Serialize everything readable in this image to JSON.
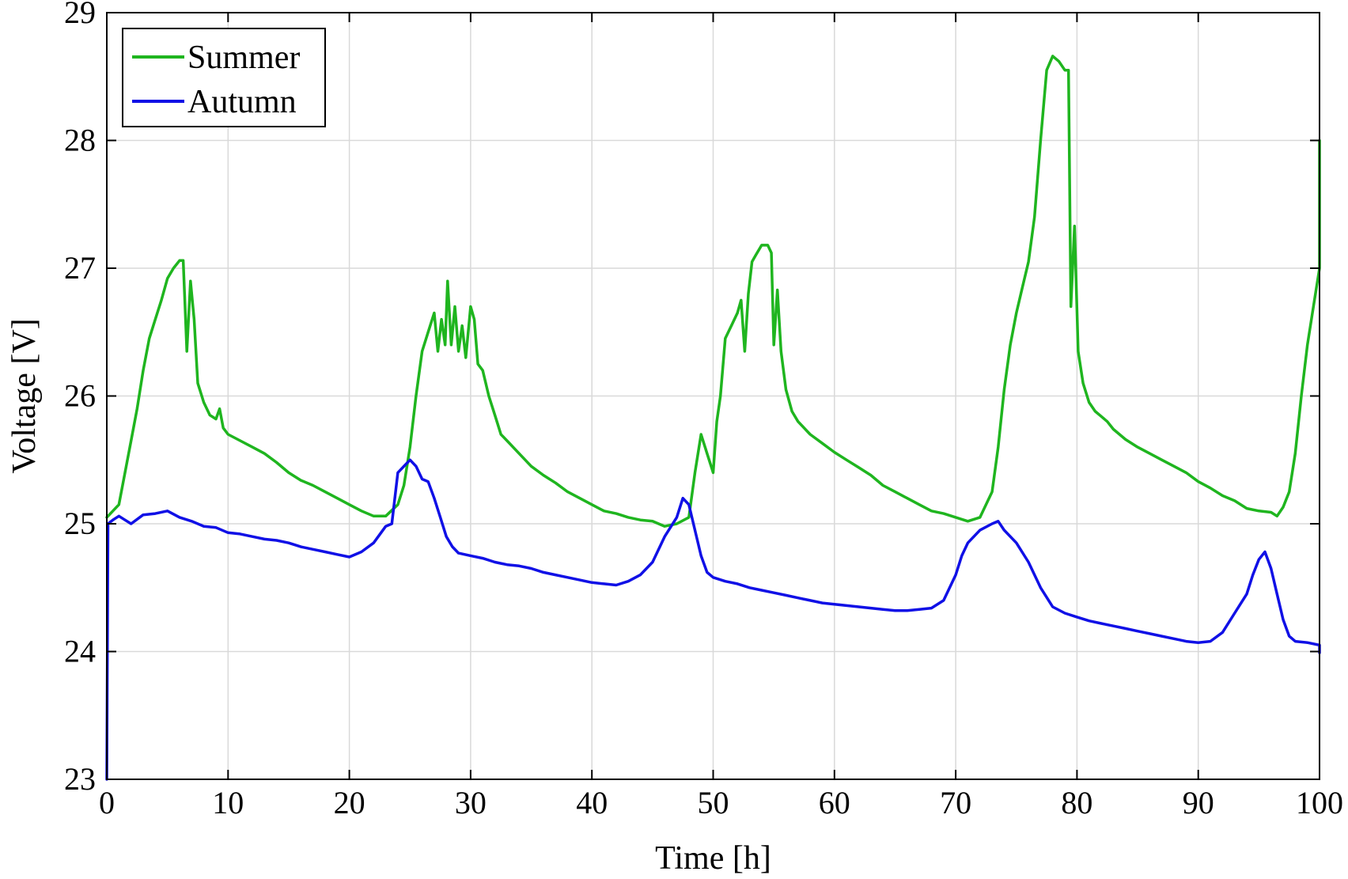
{
  "chart_data": {
    "type": "line",
    "title": "",
    "xlabel": "Time [h]",
    "ylabel": "Voltage [V]",
    "xlim": [
      0,
      100
    ],
    "ylim": [
      23,
      29
    ],
    "xticks": [
      0,
      10,
      20,
      30,
      40,
      50,
      60,
      70,
      80,
      90,
      100
    ],
    "yticks": [
      23,
      24,
      25,
      26,
      27,
      28,
      29
    ],
    "grid": true,
    "legend_position": "top-left",
    "series": [
      {
        "name": "Summer",
        "color": "#1fb51f",
        "points": [
          [
            0,
            25.05
          ],
          [
            0.5,
            25.1
          ],
          [
            1,
            25.15
          ],
          [
            1.5,
            25.4
          ],
          [
            2,
            25.65
          ],
          [
            2.5,
            25.9
          ],
          [
            3,
            26.2
          ],
          [
            3.5,
            26.45
          ],
          [
            4,
            26.6
          ],
          [
            4.5,
            26.75
          ],
          [
            5,
            26.92
          ],
          [
            5.5,
            27.0
          ],
          [
            6,
            27.06
          ],
          [
            6.3,
            27.06
          ],
          [
            6.6,
            26.35
          ],
          [
            6.9,
            26.9
          ],
          [
            7.2,
            26.6
          ],
          [
            7.5,
            26.1
          ],
          [
            8,
            25.95
          ],
          [
            8.5,
            25.85
          ],
          [
            9,
            25.82
          ],
          [
            9.3,
            25.9
          ],
          [
            9.6,
            25.75
          ],
          [
            10,
            25.7
          ],
          [
            11,
            25.65
          ],
          [
            12,
            25.6
          ],
          [
            13,
            25.55
          ],
          [
            14,
            25.48
          ],
          [
            15,
            25.4
          ],
          [
            16,
            25.34
          ],
          [
            17,
            25.3
          ],
          [
            18,
            25.25
          ],
          [
            19,
            25.2
          ],
          [
            20,
            25.15
          ],
          [
            21,
            25.1
          ],
          [
            22,
            25.06
          ],
          [
            23,
            25.06
          ],
          [
            24,
            25.15
          ],
          [
            24.5,
            25.3
          ],
          [
            25,
            25.6
          ],
          [
            25.5,
            26.0
          ],
          [
            26,
            26.35
          ],
          [
            26.5,
            26.5
          ],
          [
            27,
            26.65
          ],
          [
            27.3,
            26.35
          ],
          [
            27.6,
            26.6
          ],
          [
            27.9,
            26.4
          ],
          [
            28.1,
            26.9
          ],
          [
            28.4,
            26.4
          ],
          [
            28.7,
            26.7
          ],
          [
            29,
            26.35
          ],
          [
            29.3,
            26.55
          ],
          [
            29.6,
            26.3
          ],
          [
            30,
            26.7
          ],
          [
            30.3,
            26.6
          ],
          [
            30.6,
            26.25
          ],
          [
            31,
            26.2
          ],
          [
            31.5,
            26.0
          ],
          [
            32,
            25.85
          ],
          [
            32.5,
            25.7
          ],
          [
            33,
            25.65
          ],
          [
            34,
            25.55
          ],
          [
            35,
            25.45
          ],
          [
            36,
            25.38
          ],
          [
            37,
            25.32
          ],
          [
            38,
            25.25
          ],
          [
            39,
            25.2
          ],
          [
            40,
            25.15
          ],
          [
            41,
            25.1
          ],
          [
            42,
            25.08
          ],
          [
            43,
            25.05
          ],
          [
            44,
            25.03
          ],
          [
            45,
            25.02
          ],
          [
            46,
            24.98
          ],
          [
            47,
            25.0
          ],
          [
            48,
            25.05
          ],
          [
            48.5,
            25.4
          ],
          [
            49,
            25.7
          ],
          [
            49.5,
            25.55
          ],
          [
            50,
            25.4
          ],
          [
            50.3,
            25.8
          ],
          [
            50.6,
            26.0
          ],
          [
            51,
            26.45
          ],
          [
            51.5,
            26.55
          ],
          [
            52,
            26.65
          ],
          [
            52.3,
            26.75
          ],
          [
            52.6,
            26.35
          ],
          [
            52.9,
            26.8
          ],
          [
            53.2,
            27.05
          ],
          [
            53.5,
            27.1
          ],
          [
            54,
            27.18
          ],
          [
            54.5,
            27.18
          ],
          [
            54.8,
            27.12
          ],
          [
            55,
            26.4
          ],
          [
            55.3,
            26.83
          ],
          [
            55.6,
            26.35
          ],
          [
            56,
            26.05
          ],
          [
            56.5,
            25.88
          ],
          [
            57,
            25.8
          ],
          [
            58,
            25.7
          ],
          [
            59,
            25.63
          ],
          [
            60,
            25.56
          ],
          [
            61,
            25.5
          ],
          [
            62,
            25.44
          ],
          [
            63,
            25.38
          ],
          [
            64,
            25.3
          ],
          [
            65,
            25.25
          ],
          [
            66,
            25.2
          ],
          [
            67,
            25.15
          ],
          [
            68,
            25.1
          ],
          [
            69,
            25.08
          ],
          [
            70,
            25.05
          ],
          [
            71,
            25.02
          ],
          [
            72,
            25.05
          ],
          [
            73,
            25.25
          ],
          [
            73.5,
            25.6
          ],
          [
            74,
            26.05
          ],
          [
            74.5,
            26.4
          ],
          [
            75,
            26.65
          ],
          [
            75.5,
            26.85
          ],
          [
            76,
            27.05
          ],
          [
            76.5,
            27.4
          ],
          [
            77,
            28.0
          ],
          [
            77.5,
            28.55
          ],
          [
            78,
            28.66
          ],
          [
            78.5,
            28.62
          ],
          [
            79,
            28.55
          ],
          [
            79.3,
            28.55
          ],
          [
            79.5,
            26.7
          ],
          [
            79.8,
            27.33
          ],
          [
            80.1,
            26.35
          ],
          [
            80.5,
            26.1
          ],
          [
            81,
            25.95
          ],
          [
            81.5,
            25.88
          ],
          [
            82,
            25.84
          ],
          [
            82.5,
            25.8
          ],
          [
            83,
            25.74
          ],
          [
            84,
            25.66
          ],
          [
            85,
            25.6
          ],
          [
            86,
            25.55
          ],
          [
            87,
            25.5
          ],
          [
            88,
            25.45
          ],
          [
            89,
            25.4
          ],
          [
            90,
            25.33
          ],
          [
            91,
            25.28
          ],
          [
            92,
            25.22
          ],
          [
            93,
            25.18
          ],
          [
            94,
            25.12
          ],
          [
            95,
            25.1
          ],
          [
            96,
            25.09
          ],
          [
            96.5,
            25.06
          ],
          [
            97,
            25.13
          ],
          [
            97.5,
            25.25
          ],
          [
            98,
            25.55
          ],
          [
            98.5,
            26.0
          ],
          [
            99,
            26.4
          ],
          [
            99.5,
            26.7
          ],
          [
            100,
            27.0
          ],
          [
            100.5,
            27.4
          ],
          [
            100.8,
            28.0
          ]
        ]
      },
      {
        "name": "Autumn",
        "color": "#1010e6",
        "points": [
          [
            0,
            23.0
          ],
          [
            0.1,
            25.0
          ],
          [
            0.5,
            25.03
          ],
          [
            1,
            25.06
          ],
          [
            1.5,
            25.03
          ],
          [
            2,
            25.0
          ],
          [
            3,
            25.07
          ],
          [
            4,
            25.08
          ],
          [
            5,
            25.1
          ],
          [
            6,
            25.05
          ],
          [
            7,
            25.02
          ],
          [
            8,
            24.98
          ],
          [
            9,
            24.97
          ],
          [
            10,
            24.93
          ],
          [
            11,
            24.92
          ],
          [
            12,
            24.9
          ],
          [
            13,
            24.88
          ],
          [
            14,
            24.87
          ],
          [
            15,
            24.85
          ],
          [
            16,
            24.82
          ],
          [
            17,
            24.8
          ],
          [
            18,
            24.78
          ],
          [
            19,
            24.76
          ],
          [
            20,
            24.74
          ],
          [
            21,
            24.78
          ],
          [
            22,
            24.85
          ],
          [
            23,
            24.98
          ],
          [
            23.5,
            25.0
          ],
          [
            24,
            25.4
          ],
          [
            24.5,
            25.45
          ],
          [
            25,
            25.5
          ],
          [
            25.5,
            25.45
          ],
          [
            26,
            25.35
          ],
          [
            26.5,
            25.33
          ],
          [
            27,
            25.2
          ],
          [
            27.5,
            25.05
          ],
          [
            28,
            24.9
          ],
          [
            28.5,
            24.82
          ],
          [
            29,
            24.77
          ],
          [
            30,
            24.75
          ],
          [
            31,
            24.73
          ],
          [
            32,
            24.7
          ],
          [
            33,
            24.68
          ],
          [
            34,
            24.67
          ],
          [
            35,
            24.65
          ],
          [
            36,
            24.62
          ],
          [
            37,
            24.6
          ],
          [
            38,
            24.58
          ],
          [
            39,
            24.56
          ],
          [
            40,
            24.54
          ],
          [
            41,
            24.53
          ],
          [
            42,
            24.52
          ],
          [
            43,
            24.55
          ],
          [
            44,
            24.6
          ],
          [
            45,
            24.7
          ],
          [
            46,
            24.9
          ],
          [
            47,
            25.05
          ],
          [
            47.5,
            25.2
          ],
          [
            48,
            25.15
          ],
          [
            48.5,
            24.95
          ],
          [
            49,
            24.75
          ],
          [
            49.5,
            24.62
          ],
          [
            50,
            24.58
          ],
          [
            51,
            24.55
          ],
          [
            52,
            24.53
          ],
          [
            53,
            24.5
          ],
          [
            54,
            24.48
          ],
          [
            55,
            24.46
          ],
          [
            56,
            24.44
          ],
          [
            57,
            24.42
          ],
          [
            58,
            24.4
          ],
          [
            59,
            24.38
          ],
          [
            60,
            24.37
          ],
          [
            61,
            24.36
          ],
          [
            62,
            24.35
          ],
          [
            63,
            24.34
          ],
          [
            64,
            24.33
          ],
          [
            65,
            24.32
          ],
          [
            66,
            24.32
          ],
          [
            67,
            24.33
          ],
          [
            68,
            24.34
          ],
          [
            69,
            24.4
          ],
          [
            70,
            24.6
          ],
          [
            70.5,
            24.75
          ],
          [
            71,
            24.85
          ],
          [
            72,
            24.95
          ],
          [
            73,
            25.0
          ],
          [
            73.5,
            25.02
          ],
          [
            74,
            24.95
          ],
          [
            75,
            24.85
          ],
          [
            76,
            24.7
          ],
          [
            77,
            24.5
          ],
          [
            78,
            24.35
          ],
          [
            79,
            24.3
          ],
          [
            80,
            24.27
          ],
          [
            81,
            24.24
          ],
          [
            82,
            24.22
          ],
          [
            83,
            24.2
          ],
          [
            84,
            24.18
          ],
          [
            85,
            24.16
          ],
          [
            86,
            24.14
          ],
          [
            87,
            24.12
          ],
          [
            88,
            24.1
          ],
          [
            89,
            24.08
          ],
          [
            90,
            24.07
          ],
          [
            91,
            24.08
          ],
          [
            92,
            24.15
          ],
          [
            93,
            24.3
          ],
          [
            94,
            24.45
          ],
          [
            94.5,
            24.6
          ],
          [
            95,
            24.72
          ],
          [
            95.5,
            24.78
          ],
          [
            96,
            24.65
          ],
          [
            96.5,
            24.45
          ],
          [
            97,
            24.25
          ],
          [
            97.5,
            24.12
          ],
          [
            98,
            24.08
          ],
          [
            99,
            24.07
          ],
          [
            100,
            24.05
          ],
          [
            100.5,
            24.02
          ],
          [
            101,
            24.0
          ],
          [
            101.3,
            23.99
          ]
        ]
      }
    ]
  }
}
